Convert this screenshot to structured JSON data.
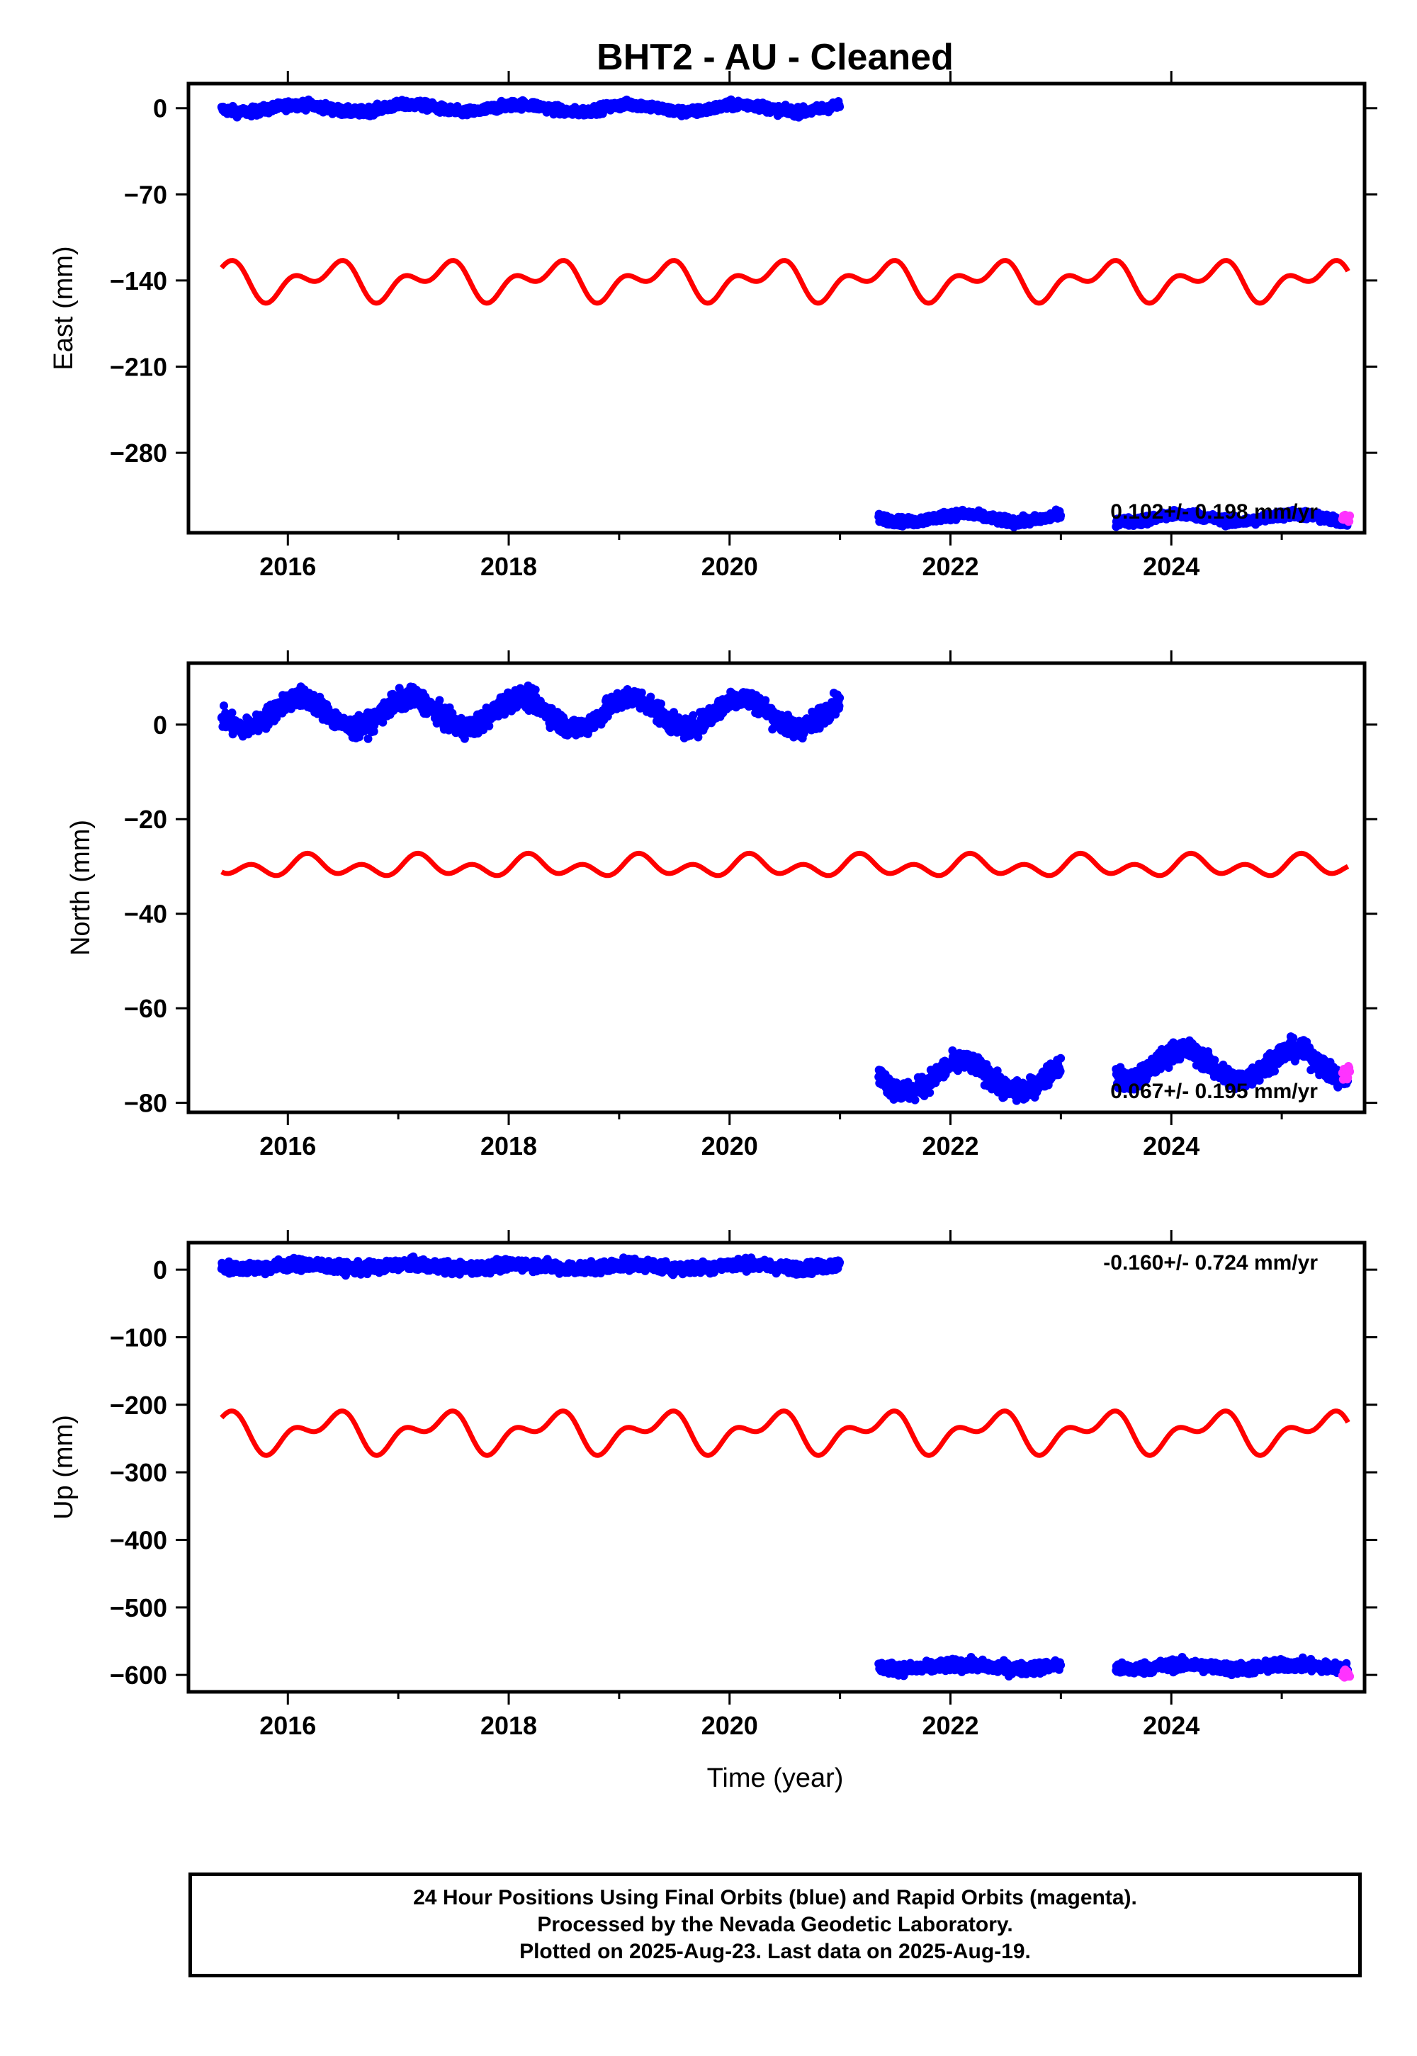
{
  "title": "BHT2  - AU - Cleaned",
  "colors": {
    "final": "#0000ff",
    "rapid": "#ff33ff",
    "model": "#ff0000",
    "frame": "#000000"
  },
  "x_axis": {
    "label": "Time (year)",
    "range": [
      2015.1,
      2025.75
    ],
    "ticks": [
      2016,
      2018,
      2020,
      2022,
      2024
    ],
    "tick_labels": [
      "2016",
      "2018",
      "2020",
      "2022",
      "2024"
    ]
  },
  "chart_data": [
    {
      "type": "scatter",
      "panel": "east",
      "ylabel": "East (mm)",
      "ylim": [
        -345,
        20
      ],
      "yticks": [
        0,
        -70,
        -140,
        -210,
        -280
      ],
      "ytick_labels": [
        "0",
        "−70",
        "−140",
        "−210",
        "−280"
      ],
      "rate": "0.102+/- 0.198 mm/yr",
      "series": [
        {
          "segments": [
            {
              "x_start": 2015.4,
              "x_end": 2021.0,
              "mean": 0,
              "amp": 3,
              "noise": 2.5
            },
            {
              "x_start": 2021.35,
              "x_end": 2023.0,
              "mean": -333,
              "amp": 3,
              "noise": 2.5
            },
            {
              "x_start": 2023.5,
              "x_end": 2025.6,
              "mean": -333,
              "amp": 3,
              "noise": 2.5
            }
          ]
        },
        {
          "segments": [
            {
              "x_start": 2025.55,
              "x_end": 2025.62,
              "mean": -333,
              "amp": 0,
              "noise": 3
            }
          ]
        },
        {
          "model": {
            "x_start": 2015.4,
            "x_end": 2025.6,
            "mean": -140,
            "annual_amp": 11,
            "semi_amp": 9,
            "annual_phase": -0.8,
            "semi_phase": 1.2
          }
        }
      ]
    },
    {
      "type": "scatter",
      "panel": "north",
      "ylabel": "North (mm)",
      "ylim": [
        -82,
        13
      ],
      "yticks": [
        0,
        -20,
        -40,
        -60,
        -80
      ],
      "ytick_labels": [
        "0",
        "−20",
        "−40",
        "−60",
        "−80"
      ],
      "rate": "0.067+/- 0.195 mm/yr",
      "series": [
        {
          "segments": [
            {
              "x_start": 2015.4,
              "x_end": 2021.0,
              "mean": 2.5,
              "amp": 3.2,
              "noise": 1.5
            },
            {
              "x_start": 2021.35,
              "x_end": 2023.0,
              "mean": -74.5,
              "amp": 3.2,
              "noise": 1.5
            },
            {
              "x_start": 2023.5,
              "x_end": 2025.6,
              "mean": -72,
              "amp": 3.2,
              "noise": 1.5
            }
          ]
        },
        {
          "segments": [
            {
              "x_start": 2025.55,
              "x_end": 2025.62,
              "mean": -73.5,
              "amp": 0,
              "noise": 1.5
            }
          ]
        },
        {
          "model": {
            "x_start": 2015.4,
            "x_end": 2025.6,
            "mean": -30,
            "annual_amp": 1.2,
            "semi_amp": 1.6,
            "annual_phase": 0.3,
            "semi_phase": -0.6
          }
        }
      ]
    },
    {
      "type": "scatter",
      "panel": "up",
      "ylabel": "Up (mm)",
      "ylim": [
        -625,
        40
      ],
      "yticks": [
        0,
        -100,
        -200,
        -300,
        -400,
        -500,
        -600
      ],
      "ytick_labels": [
        "0",
        "−100",
        "−200",
        "−300",
        "−400",
        "−500",
        "−600"
      ],
      "rate": "-0.160+/- 0.724 mm/yr",
      "series": [
        {
          "segments": [
            {
              "x_start": 2015.4,
              "x_end": 2021.0,
              "mean": 5,
              "amp": 3,
              "noise": 6
            },
            {
              "x_start": 2021.35,
              "x_end": 2023.0,
              "mean": -588,
              "amp": 3,
              "noise": 6
            },
            {
              "x_start": 2023.5,
              "x_end": 2025.6,
              "mean": -588,
              "amp": 3,
              "noise": 6
            }
          ]
        },
        {
          "segments": [
            {
              "x_start": 2025.55,
              "x_end": 2025.62,
              "mean": -600,
              "amp": 0,
              "noise": 6
            }
          ]
        },
        {
          "model": {
            "x_start": 2015.4,
            "x_end": 2025.6,
            "mean": -240,
            "annual_amp": 22,
            "semi_amp": 16,
            "annual_phase": -0.8,
            "semi_phase": 1.2
          }
        }
      ]
    }
  ],
  "footer": {
    "line1": "24 Hour Positions Using Final Orbits (blue) and Rapid Orbits (magenta).",
    "line2": "Processed by the Nevada Geodetic Laboratory.",
    "line3": "Plotted on 2025-Aug-23. Last data on 2025-Aug-19."
  }
}
